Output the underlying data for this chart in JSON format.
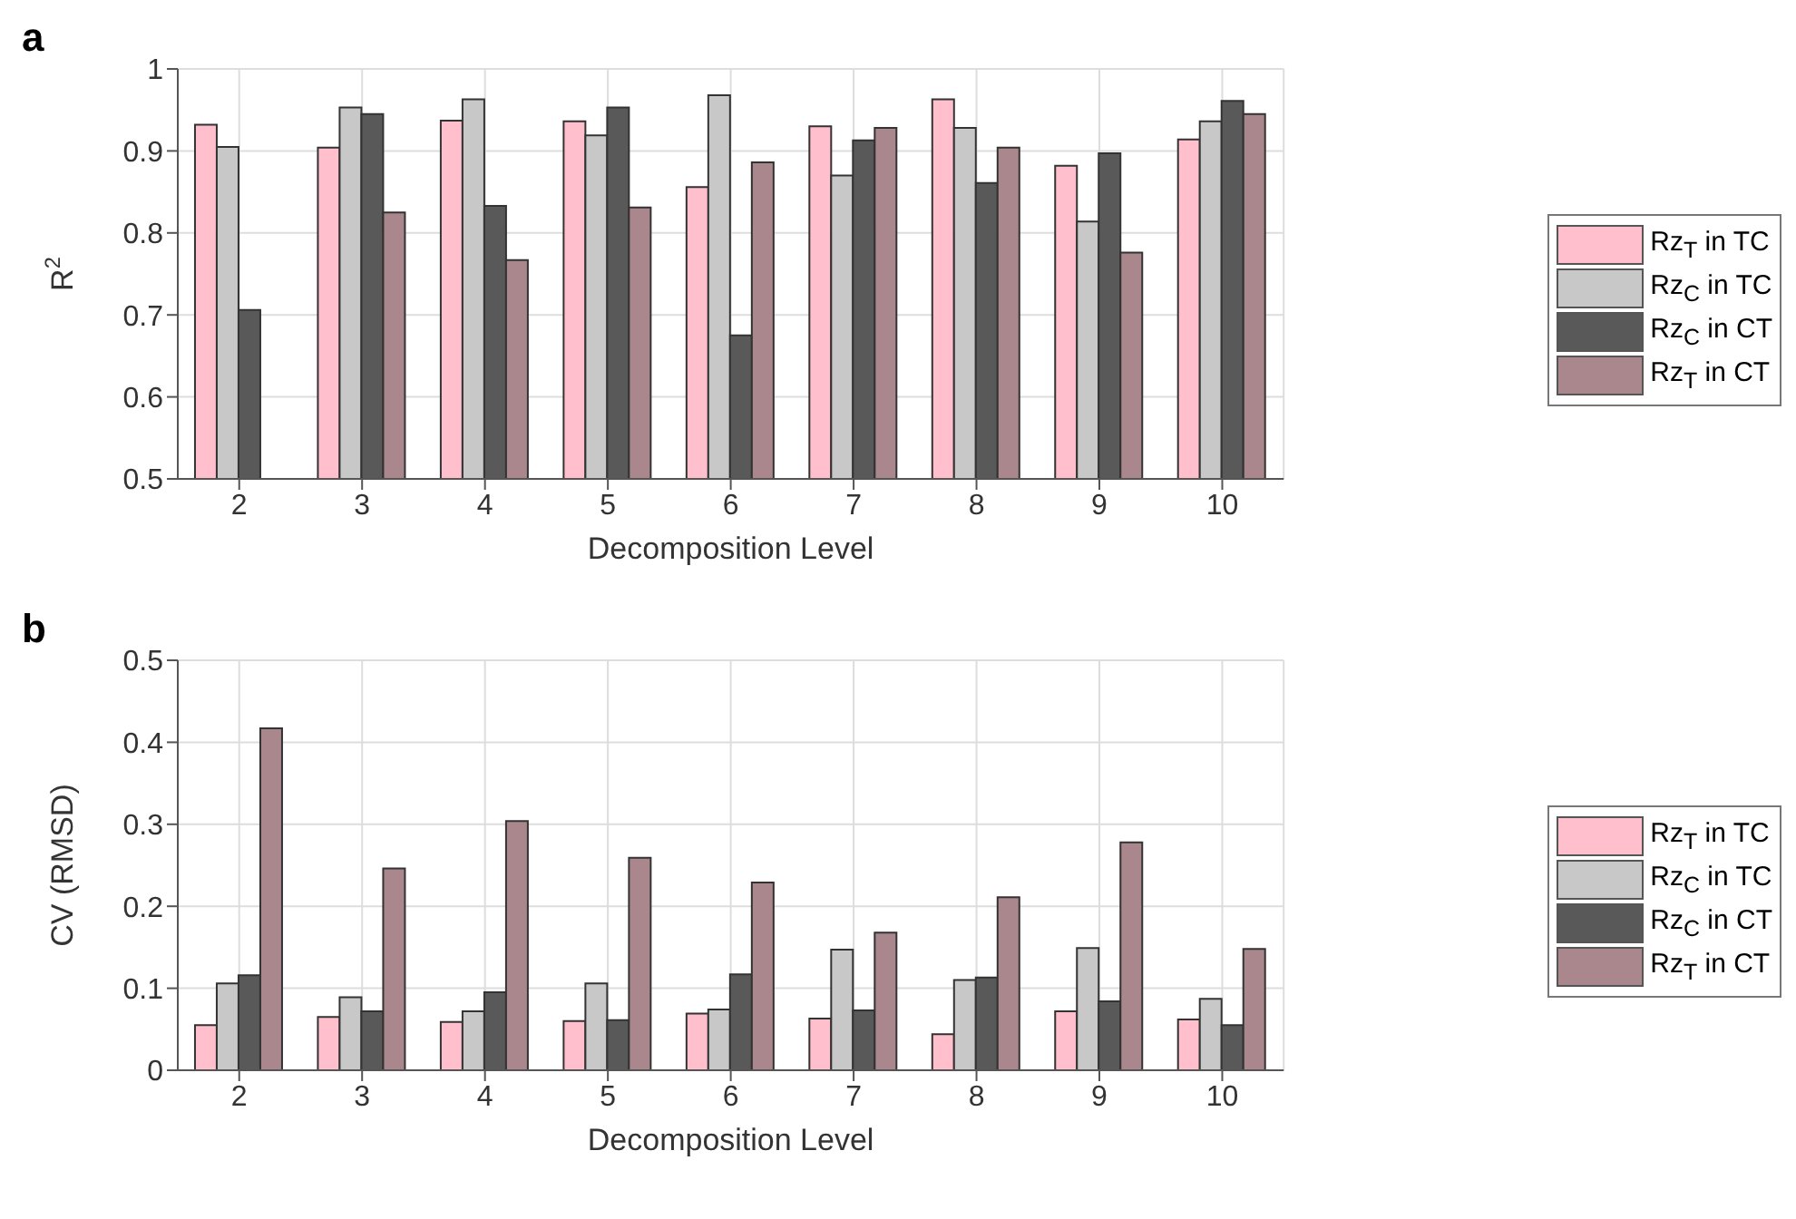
{
  "chart_data": [
    {
      "type": "bar",
      "title": "a",
      "xlabel": "Decomposition Level",
      "ylabel": "R$^{2}$",
      "categories": [
        "2",
        "3",
        "4",
        "5",
        "6",
        "7",
        "8",
        "9",
        "10"
      ],
      "ylim": [
        0.5,
        1
      ],
      "yticks": [
        0.5,
        0.6,
        0.7,
        0.8,
        0.9,
        1
      ],
      "grid": true,
      "legend": "right",
      "series": [
        {
          "name": "Rz$_{T}$ in TC",
          "color": "#ffbfcc",
          "values": [
            0.932,
            0.904,
            0.937,
            0.936,
            0.856,
            0.93,
            0.963,
            0.882,
            0.914
          ]
        },
        {
          "name": "Rz$_{C}$ in TC",
          "color": "#c8c8c8",
          "values": [
            0.905,
            0.953,
            0.963,
            0.919,
            0.968,
            0.87,
            0.928,
            0.814,
            0.936
          ]
        },
        {
          "name": "Rz$_{C}$ in CT",
          "color": "#595959",
          "values": [
            0.706,
            0.945,
            0.833,
            0.953,
            0.675,
            0.913,
            0.861,
            0.897,
            0.961
          ]
        },
        {
          "name": "Rz$_{T}$ in CT",
          "color": "#a9878c",
          "values": [
            null,
            0.825,
            0.767,
            0.831,
            0.886,
            0.928,
            0.904,
            0.776,
            0.945
          ]
        }
      ]
    },
    {
      "type": "bar",
      "title": "b",
      "xlabel": "Decomposition Level",
      "ylabel": "CV (RMSD)",
      "categories": [
        "2",
        "3",
        "4",
        "5",
        "6",
        "7",
        "8",
        "9",
        "10"
      ],
      "ylim": [
        0,
        0.5
      ],
      "yticks": [
        0,
        0.1,
        0.2,
        0.3,
        0.4,
        0.5
      ],
      "grid": true,
      "legend": "right",
      "series": [
        {
          "name": "Rz$_{T}$ in TC",
          "color": "#ffbfcc",
          "values": [
            0.055,
            0.065,
            0.059,
            0.06,
            0.069,
            0.063,
            0.044,
            0.072,
            0.062
          ]
        },
        {
          "name": "Rz$_{C}$ in TC",
          "color": "#c8c8c8",
          "values": [
            0.106,
            0.089,
            0.072,
            0.106,
            0.074,
            0.147,
            0.11,
            0.149,
            0.087
          ]
        },
        {
          "name": "Rz$_{C}$ in CT",
          "color": "#595959",
          "values": [
            0.116,
            0.072,
            0.095,
            0.061,
            0.117,
            0.073,
            0.113,
            0.084,
            0.055
          ]
        },
        {
          "name": "Rz$_{T}$ in CT",
          "color": "#a9878c",
          "values": [
            0.417,
            0.246,
            0.304,
            0.259,
            0.229,
            0.168,
            0.211,
            0.278,
            0.148
          ]
        }
      ]
    }
  ]
}
